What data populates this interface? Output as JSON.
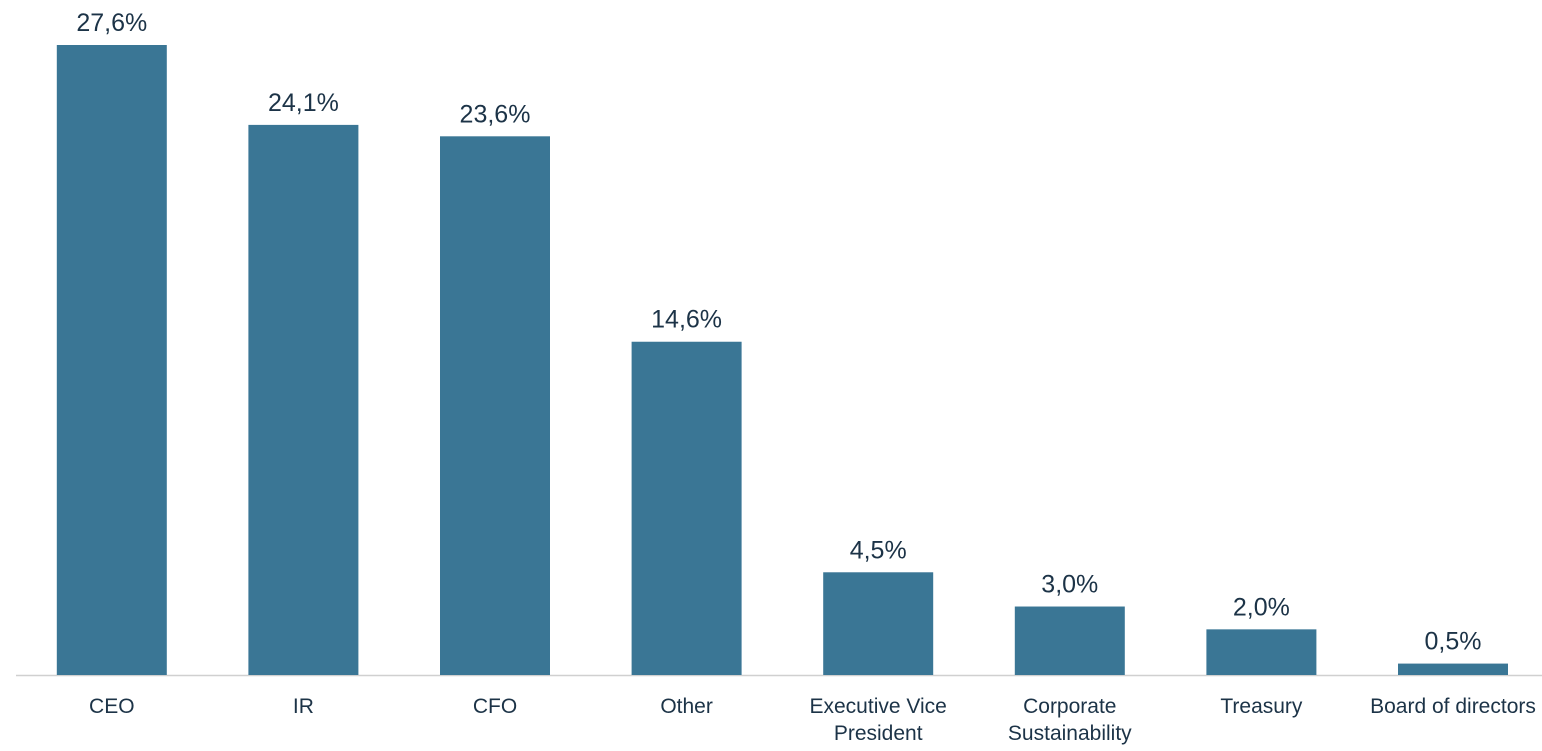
{
  "chart_data": {
    "type": "bar",
    "categories": [
      "CEO",
      "IR",
      "CFO",
      "Other",
      "Executive Vice President",
      "Corporate Sustainability",
      "Treasury",
      "Board of directors"
    ],
    "values": [
      27.6,
      24.1,
      23.6,
      14.6,
      4.5,
      3.0,
      2.0,
      0.5
    ],
    "value_labels": [
      "27,6%",
      "24,1%",
      "23,6%",
      "14,6%",
      "4,5%",
      "3,0%",
      "2,0%",
      "0,5%"
    ],
    "color": "#3a7695"
  }
}
